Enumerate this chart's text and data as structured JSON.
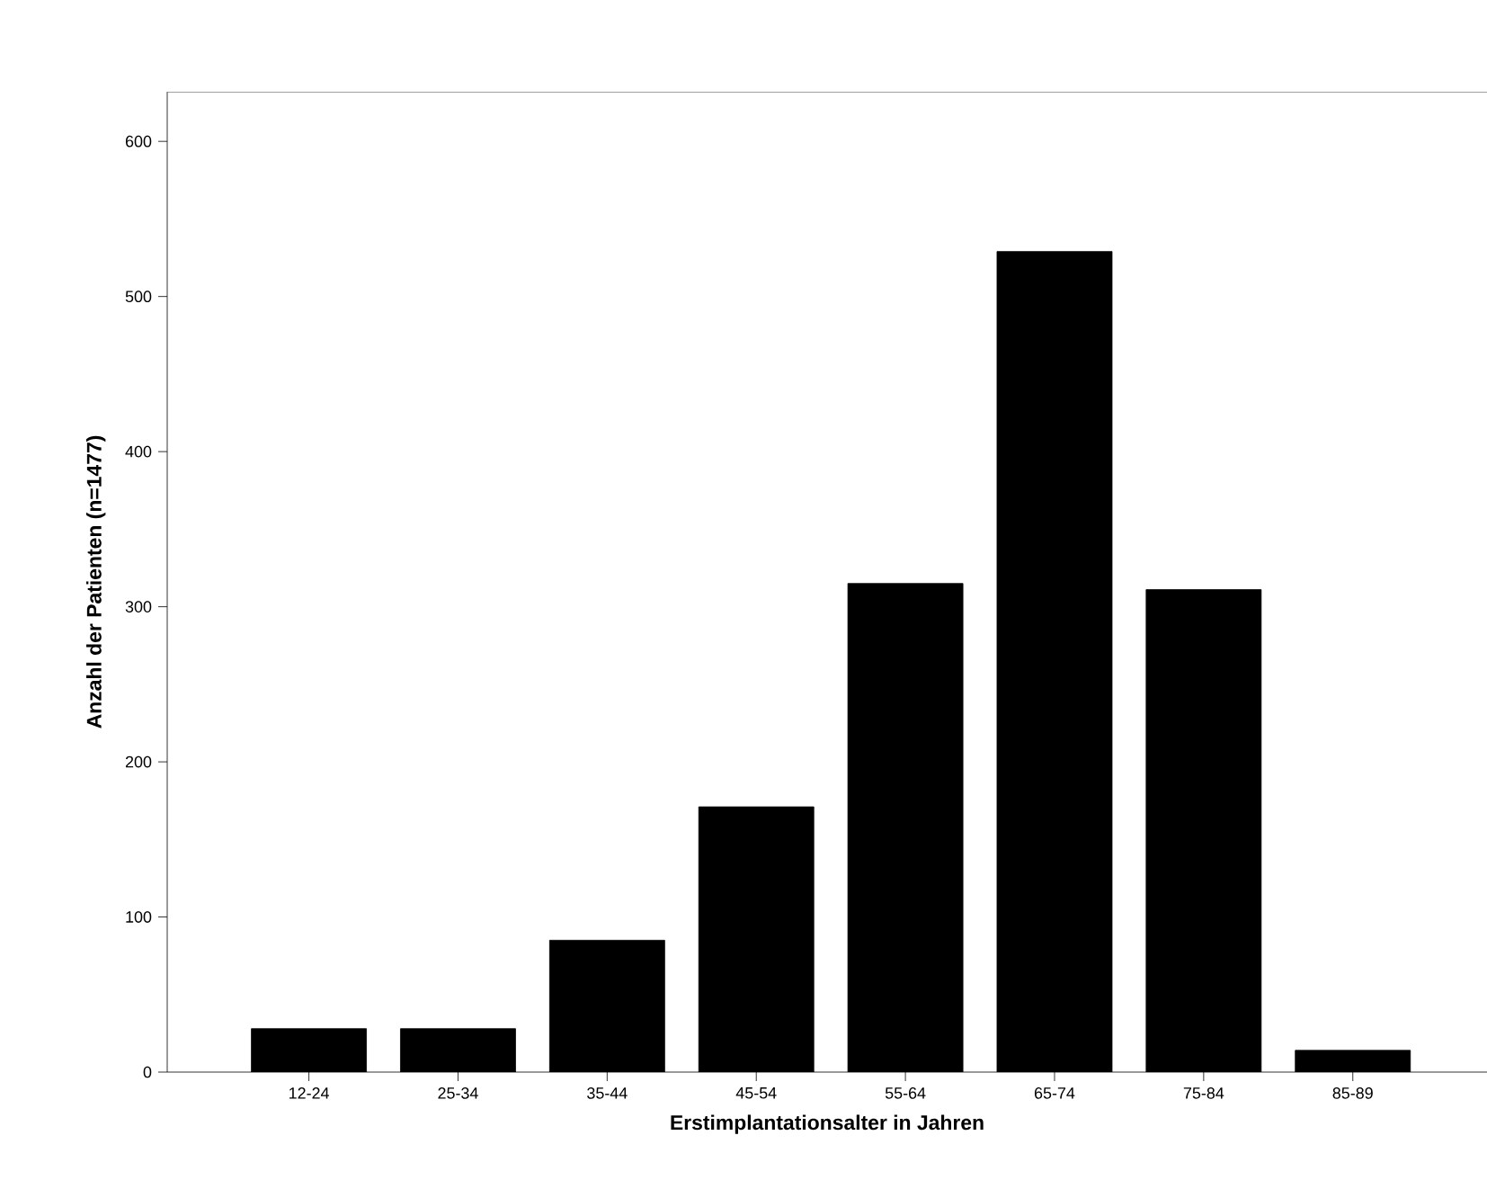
{
  "chart_data": {
    "type": "bar",
    "xlabel": "Erstimplantationsalter in Jahren",
    "ylabel": "Anzahl der Patienten (n=1477)",
    "categories": [
      "12-24",
      "25-34",
      "35-44",
      "45-54",
      "55-64",
      "65-74",
      "75-84",
      "85-89"
    ],
    "values": [
      28,
      28,
      85,
      171,
      315,
      529,
      311,
      14
    ],
    "color": "#000000",
    "ylim": [
      0,
      632
    ],
    "yticks": [
      0,
      100,
      200,
      300,
      400,
      500,
      600
    ],
    "grid": false
  }
}
